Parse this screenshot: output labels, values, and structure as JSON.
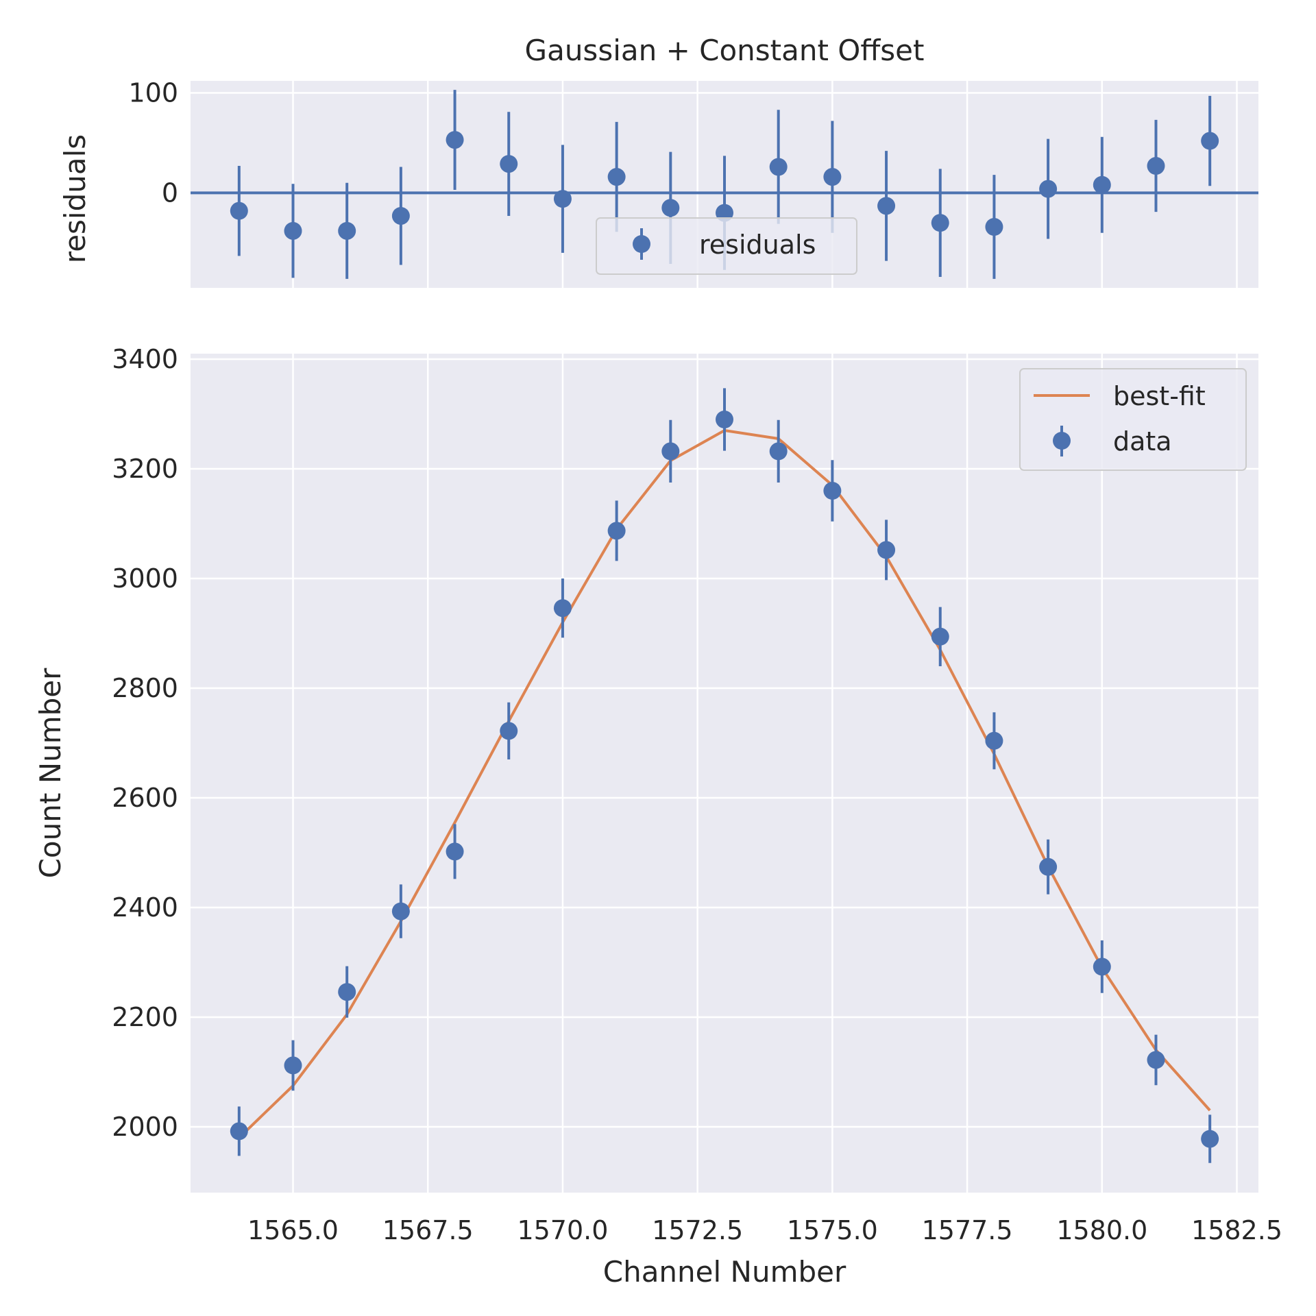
{
  "chart_data": [
    {
      "type": "scatter",
      "title": "Gaussian + Constant Offset",
      "xlabel": "",
      "ylabel": "residuals",
      "xlim": [
        1563.1,
        1582.9
      ],
      "ylim": [
        -95,
        112
      ],
      "xticks": [
        1565.0,
        1567.5,
        1570.0,
        1572.5,
        1575.0,
        1577.5,
        1580.0,
        1582.5
      ],
      "yticks": [
        0,
        100
      ],
      "ytick_labels": [
        "0",
        "100"
      ],
      "grid": true,
      "legend": {
        "placement": "lower-center",
        "entries": [
          "residuals"
        ]
      },
      "colors": {
        "points": "#4c72b0",
        "background": "#eaeaf2",
        "grid": "#ffffff",
        "zero_line": "#4c72b0"
      },
      "series": [
        {
          "name": "residuals",
          "kind": "errorbar",
          "x": [
            1564,
            1565,
            1566,
            1567,
            1568,
            1569,
            1570,
            1571,
            1572,
            1573,
            1574,
            1575,
            1576,
            1577,
            1578,
            1579,
            1580,
            1581,
            1582
          ],
          "y": [
            -18,
            -38,
            -38,
            -23,
            53,
            29,
            -6,
            16,
            -15,
            -20,
            26,
            16,
            -13,
            -30,
            -34,
            4,
            8,
            27,
            52
          ],
          "yerr": [
            45,
            47,
            48,
            49,
            50,
            52,
            54,
            55,
            56,
            57,
            57,
            56,
            55,
            54,
            52,
            50,
            48,
            46,
            45
          ]
        }
      ],
      "hline": {
        "y": 0
      }
    },
    {
      "type": "line",
      "title": "",
      "xlabel": "Channel Number",
      "ylabel": "Count Number",
      "xlim": [
        1563.1,
        1582.9
      ],
      "ylim": [
        1880,
        3410
      ],
      "xticks": [
        1565.0,
        1567.5,
        1570.0,
        1572.5,
        1575.0,
        1577.5,
        1580.0,
        1582.5
      ],
      "xtick_labels": [
        "1565.0",
        "1567.5",
        "1570.0",
        "1572.5",
        "1575.0",
        "1577.5",
        "1580.0",
        "1582.5"
      ],
      "yticks": [
        2000,
        2200,
        2400,
        2600,
        2800,
        3000,
        3200,
        3400
      ],
      "ytick_labels": [
        "2000",
        "2200",
        "2400",
        "2600",
        "2800",
        "3000",
        "3200",
        "3400"
      ],
      "grid": true,
      "legend": {
        "placement": "upper-right",
        "entries": [
          "best-fit",
          "data"
        ]
      },
      "colors": {
        "data": "#4c72b0",
        "fit": "#dd8452",
        "background": "#eaeaf2",
        "grid": "#ffffff"
      },
      "series": [
        {
          "name": "best-fit",
          "kind": "line",
          "x": [
            1564,
            1565,
            1566,
            1567,
            1568,
            1569,
            1570,
            1571,
            1572,
            1573,
            1574,
            1575,
            1576,
            1577,
            1578,
            1579,
            1580,
            1581,
            1582
          ],
          "y": [
            1980,
            2075,
            2205,
            2375,
            2555,
            2740,
            2920,
            3090,
            3215,
            3270,
            3255,
            3170,
            3040,
            2870,
            2680,
            2475,
            2290,
            2140,
            2030
          ]
        },
        {
          "name": "data",
          "kind": "errorbar",
          "x": [
            1564,
            1565,
            1566,
            1567,
            1568,
            1569,
            1570,
            1571,
            1572,
            1573,
            1574,
            1575,
            1576,
            1577,
            1578,
            1579,
            1580,
            1581,
            1582
          ],
          "y": [
            1992,
            2112,
            2246,
            2393,
            2502,
            2722,
            2946,
            3087,
            3232,
            3290,
            3232,
            3160,
            3052,
            2894,
            2704,
            2474,
            2292,
            2122,
            1978
          ],
          "yerr": [
            45,
            46,
            47,
            49,
            50,
            52,
            54,
            55,
            57,
            57,
            57,
            56,
            55,
            54,
            52,
            50,
            48,
            46,
            44
          ]
        }
      ]
    }
  ]
}
